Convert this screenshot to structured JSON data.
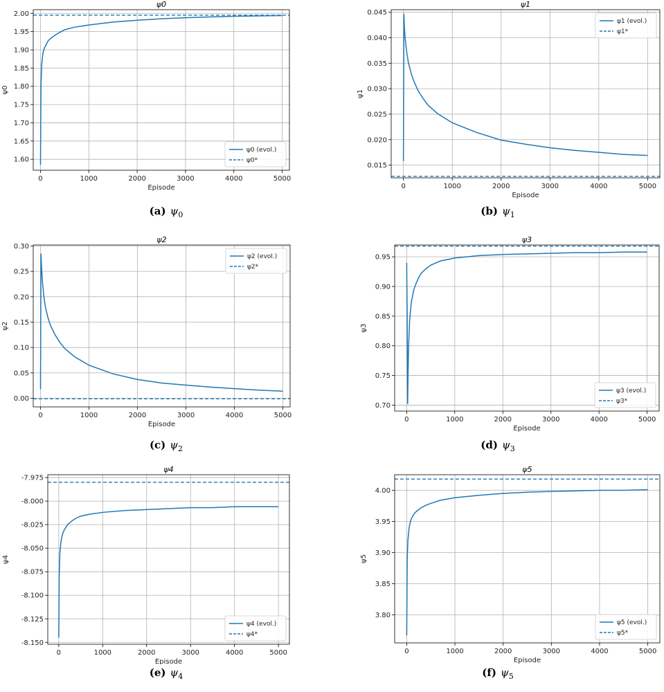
{
  "colors": {
    "line": "#1f77b4",
    "grid": "#b0b0b0"
  },
  "chart_data": [
    {
      "id": "a",
      "type": "line",
      "title": "ψ0",
      "xlabel": "Episode",
      "ylabel": "ψ0",
      "caption_label": "(a)",
      "caption_symbol": "ψ",
      "caption_sub": "0",
      "legend": {
        "evol": "ψ0 (evol.)",
        "target": "ψ0*"
      },
      "legend_position": "lower-right",
      "xlim": [
        -150,
        5150
      ],
      "ylim": [
        1.57,
        2.01
      ],
      "xticks": [
        0,
        1000,
        2000,
        3000,
        4000,
        5000
      ],
      "xtick_labels": [
        "0",
        "1000",
        "2000",
        "3000",
        "4000",
        "5000"
      ],
      "yticks": [
        1.6,
        1.65,
        1.7,
        1.75,
        1.8,
        1.85,
        1.9,
        1.95,
        2.0
      ],
      "ytick_labels": [
        "1.60",
        "1.65",
        "1.70",
        "1.75",
        "1.80",
        "1.85",
        "1.90",
        "1.95",
        "2.00"
      ],
      "grid": true,
      "target": 1.995,
      "series": [
        {
          "x": [
            0,
            10,
            25,
            50,
            80,
            120,
            160,
            200,
            250,
            300,
            400,
            500,
            700,
            1000,
            1500,
            2000,
            2500,
            3000,
            3500,
            4000,
            4500,
            5000
          ],
          "y": [
            1.585,
            1.8,
            1.86,
            1.89,
            1.905,
            1.915,
            1.925,
            1.93,
            1.935,
            1.94,
            1.948,
            1.955,
            1.962,
            1.968,
            1.976,
            1.981,
            1.985,
            1.988,
            1.99,
            1.992,
            1.993,
            1.994
          ]
        }
      ]
    },
    {
      "id": "b",
      "type": "line",
      "title": "ψ1",
      "xlabel": "Episode",
      "ylabel": "ψ1",
      "caption_label": "(b)",
      "caption_symbol": "ψ",
      "caption_sub": "1",
      "legend": {
        "evol": "ψ1 (evol.)",
        "target": "ψ1*"
      },
      "legend_position": "upper-right",
      "xlim": [
        -250,
        5250
      ],
      "ylim": [
        0.0125,
        0.0455
      ],
      "xticks": [
        0,
        1000,
        2000,
        3000,
        4000,
        5000
      ],
      "xtick_labels": [
        "0",
        "1000",
        "2000",
        "3000",
        "4000",
        "5000"
      ],
      "yticks": [
        0.015,
        0.02,
        0.025,
        0.03,
        0.035,
        0.04,
        0.045
      ],
      "ytick_labels": [
        "0.015",
        "0.020",
        "0.025",
        "0.030",
        "0.035",
        "0.040",
        "0.045"
      ],
      "grid": true,
      "target": 0.0128,
      "series": [
        {
          "x": [
            0,
            10,
            20,
            40,
            70,
            100,
            150,
            200,
            300,
            400,
            500,
            700,
            1000,
            1500,
            2000,
            2500,
            3000,
            3500,
            4000,
            4500,
            5000
          ],
          "y": [
            0.0158,
            0.0447,
            0.042,
            0.0395,
            0.037,
            0.0352,
            0.0333,
            0.0318,
            0.0296,
            0.0281,
            0.0268,
            0.0251,
            0.0233,
            0.0214,
            0.0199,
            0.0191,
            0.0184,
            0.0179,
            0.0175,
            0.0171,
            0.0169
          ]
        }
      ]
    },
    {
      "id": "c",
      "type": "line",
      "title": "ψ2",
      "xlabel": "Episode",
      "ylabel": "ψ2",
      "caption_label": "(c)",
      "caption_symbol": "ψ",
      "caption_sub": "2",
      "legend": {
        "evol": "ψ2 (evol.)",
        "target": "ψ2*"
      },
      "legend_position": "upper-right",
      "xlim": [
        -150,
        5150
      ],
      "ylim": [
        -0.017,
        0.302
      ],
      "xticks": [
        0,
        1000,
        2000,
        3000,
        4000,
        5000
      ],
      "xtick_labels": [
        "0",
        "1000",
        "2000",
        "3000",
        "4000",
        "5000"
      ],
      "yticks": [
        0.0,
        0.05,
        0.1,
        0.15,
        0.2,
        0.25,
        0.3
      ],
      "ytick_labels": [
        "0.00",
        "0.05",
        "0.10",
        "0.15",
        "0.20",
        "0.25",
        "0.30"
      ],
      "grid": true,
      "target": -0.001,
      "series": [
        {
          "x": [
            0,
            10,
            20,
            40,
            70,
            100,
            150,
            200,
            300,
            400,
            500,
            700,
            1000,
            1500,
            2000,
            2500,
            3000,
            3500,
            4000,
            4500,
            5000
          ],
          "y": [
            0.018,
            0.285,
            0.26,
            0.23,
            0.2,
            0.18,
            0.16,
            0.145,
            0.125,
            0.11,
            0.098,
            0.082,
            0.065,
            0.048,
            0.037,
            0.03,
            0.026,
            0.022,
            0.019,
            0.016,
            0.014
          ]
        }
      ]
    },
    {
      "id": "d",
      "type": "line",
      "title": "ψ3",
      "xlabel": "Episode",
      "ylabel": "ψ3",
      "caption_label": "(d)",
      "caption_symbol": "ψ",
      "caption_sub": "3",
      "legend": {
        "evol": "ψ3 (evol.)",
        "target": "ψ3*"
      },
      "legend_position": "lower-right",
      "xlim": [
        -250,
        5250
      ],
      "ylim": [
        0.69,
        0.97
      ],
      "xticks": [
        0,
        1000,
        2000,
        3000,
        4000,
        5000
      ],
      "xtick_labels": [
        "0",
        "1000",
        "2000",
        "3000",
        "4000",
        "5000"
      ],
      "yticks": [
        0.7,
        0.75,
        0.8,
        0.85,
        0.9,
        0.95
      ],
      "ytick_labels": [
        "0.70",
        "0.75",
        "0.80",
        "0.85",
        "0.90",
        "0.95"
      ],
      "grid": true,
      "target": 0.968,
      "series": [
        {
          "x": [
            0,
            10,
            20,
            30,
            40,
            60,
            80,
            100,
            150,
            200,
            250,
            300,
            400,
            500,
            700,
            1000,
            1500,
            2000,
            2500,
            3000,
            3500,
            4000,
            4500,
            5000
          ],
          "y": [
            0.94,
            0.85,
            0.702,
            0.76,
            0.8,
            0.84,
            0.86,
            0.875,
            0.895,
            0.906,
            0.915,
            0.922,
            0.93,
            0.936,
            0.943,
            0.948,
            0.952,
            0.954,
            0.955,
            0.956,
            0.957,
            0.957,
            0.958,
            0.958
          ]
        }
      ]
    },
    {
      "id": "e",
      "type": "line",
      "title": "ψ4",
      "xlabel": "Episode",
      "ylabel": "ψ4",
      "caption_label": "(e)",
      "caption_symbol": "ψ",
      "caption_sub": "4",
      "legend": {
        "evol": "ψ4 (evol.)",
        "target": "ψ4*"
      },
      "legend_position": "lower-right",
      "xlim": [
        -250,
        5250
      ],
      "ylim": [
        -8.152,
        -7.972
      ],
      "xticks": [
        0,
        1000,
        2000,
        3000,
        4000,
        5000
      ],
      "xtick_labels": [
        "0",
        "1000",
        "2000",
        "3000",
        "4000",
        "5000"
      ],
      "yticks": [
        -8.15,
        -8.125,
        -8.1,
        -8.075,
        -8.05,
        -8.025,
        -8.0,
        -7.975
      ],
      "ytick_labels": [
        "-8.150",
        "-8.125",
        "-8.100",
        "-8.075",
        "-8.050",
        "-8.025",
        "-8.000",
        "-7.975"
      ],
      "grid": true,
      "target": -7.98,
      "series": [
        {
          "x": [
            0,
            10,
            25,
            50,
            80,
            120,
            160,
            200,
            250,
            300,
            400,
            500,
            700,
            1000,
            1500,
            2000,
            2500,
            3000,
            3500,
            4000,
            4500,
            5000
          ],
          "y": [
            -8.145,
            -8.08,
            -8.055,
            -8.043,
            -8.036,
            -8.031,
            -8.028,
            -8.025,
            -8.023,
            -8.021,
            -8.018,
            -8.016,
            -8.014,
            -8.012,
            -8.01,
            -8.009,
            -8.008,
            -8.007,
            -8.007,
            -8.006,
            -8.006,
            -8.006
          ]
        }
      ]
    },
    {
      "id": "f",
      "type": "line",
      "title": "ψ5",
      "xlabel": "Episode",
      "ylabel": "ψ5",
      "caption_label": "(f)",
      "caption_symbol": "ψ",
      "caption_sub": "5",
      "legend": {
        "evol": "ψ5 (evol.)",
        "target": "ψ5*"
      },
      "legend_position": "lower-right",
      "xlim": [
        -250,
        5250
      ],
      "ylim": [
        3.755,
        4.025
      ],
      "xticks": [
        0,
        1000,
        2000,
        3000,
        4000,
        5000
      ],
      "xtick_labels": [
        "0",
        "1000",
        "2000",
        "3000",
        "4000",
        "5000"
      ],
      "yticks": [
        3.8,
        3.85,
        3.9,
        3.95,
        4.0
      ],
      "ytick_labels": [
        "3.80",
        "3.85",
        "3.90",
        "3.95",
        "4.00"
      ],
      "grid": true,
      "target": 4.018,
      "series": [
        {
          "x": [
            0,
            10,
            25,
            50,
            80,
            120,
            160,
            200,
            250,
            300,
            400,
            500,
            700,
            1000,
            1500,
            2000,
            2500,
            3000,
            3500,
            4000,
            4500,
            5000
          ],
          "y": [
            3.767,
            3.89,
            3.92,
            3.94,
            3.951,
            3.958,
            3.963,
            3.966,
            3.969,
            3.972,
            3.976,
            3.979,
            3.984,
            3.988,
            3.992,
            3.995,
            3.997,
            3.998,
            3.999,
            4.0,
            4.0,
            4.001
          ]
        }
      ]
    }
  ]
}
